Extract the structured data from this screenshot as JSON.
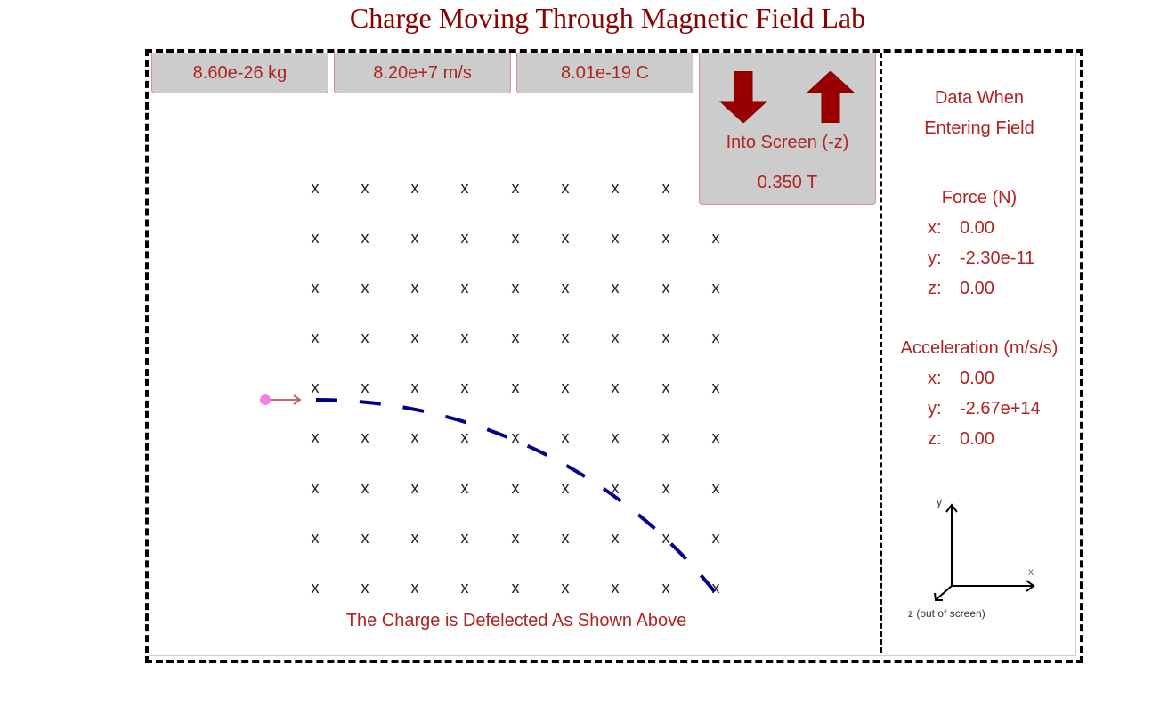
{
  "page": {
    "title": "Charge Moving Through Magnetic Field Lab"
  },
  "controls": {
    "mass": {
      "label": "8.60e-26 kg"
    },
    "velocity": {
      "label": "8.20e+7 m/s"
    },
    "charge": {
      "label": "8.01e-19 C"
    },
    "field": {
      "into_icon": "arrow-down-icon",
      "out_icon": "arrow-up-icon",
      "direction": "Into Screen (-z)",
      "magnitude": "0.350 T"
    }
  },
  "simulation": {
    "field_symbol": "x",
    "grid": {
      "rows": 9,
      "cols": 9
    },
    "charge_color": "#f080e0",
    "velocity_arrow_color": "#c86464",
    "path_color": "#00008b",
    "caption": "The Charge is Defelected As Shown Above"
  },
  "data_panel": {
    "heading_line1": "Data When",
    "heading_line2": "Entering Field",
    "force": {
      "title": "Force (N)",
      "x_label": "x:",
      "x": "0.00",
      "y_label": "y:",
      "y": "-2.30e-11",
      "z_label": "z:",
      "z": "0.00"
    },
    "acceleration": {
      "title": "Acceleration (m/s/s)",
      "x_label": "x:",
      "x": "0.00",
      "y_label": "y:",
      "y": "-2.67e+14",
      "z_label": "z:",
      "z": "0.00"
    },
    "axes": {
      "y_label": "y",
      "x_label": "x",
      "z_label": "z (out of screen)"
    }
  },
  "colors": {
    "title": "#8b0000",
    "text": "#b22222",
    "button_bg": "#cccccc",
    "button_border": "#d98f8f"
  }
}
